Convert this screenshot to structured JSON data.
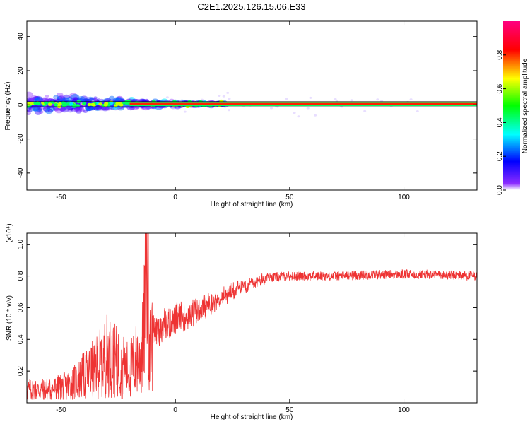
{
  "title": "C2E1.2025.126.15.06.E33",
  "chart_data": [
    {
      "type": "heatmap",
      "name": "spectrogram",
      "xlabel": "Height of straight line (km)",
      "ylabel": "Frequency (Hz)",
      "xlim": [
        -65,
        132
      ],
      "ylim": [
        -50,
        49
      ],
      "xticks": [
        -50,
        0,
        50,
        100
      ],
      "yticks": [
        -40,
        -20,
        0,
        20,
        40
      ],
      "colorbar": {
        "label": "Normalized spectral amplitude",
        "range": [
          0.0,
          1.0
        ],
        "ticks": [
          "0.0",
          "0.2",
          "0.4",
          "0.6",
          "0.8"
        ],
        "colormap": [
          "#7a00ff",
          "#0000ff",
          "#00ffff",
          "#00ff00",
          "#ffff00",
          "#ff0000",
          "#ff0080"
        ]
      },
      "main_line": {
        "frequency_hz": 0.5,
        "x_start": -20,
        "x_end": 132,
        "amplitude": 0.95
      },
      "upper_line_hz": 1.8,
      "lower_line_hz": -1.2,
      "scatter_region": {
        "x_start": -65,
        "x_end": 22,
        "f_min": -12,
        "f_max": 8
      }
    },
    {
      "type": "line",
      "name": "snr",
      "xlabel": "Height of straight line (km)",
      "ylabel": "SNR (10 * v/v)",
      "scale_label": "(x10⁴)",
      "scale_exponent": "4",
      "xlim": [
        -65,
        132
      ],
      "ylim": [
        0.0,
        1.07
      ],
      "xticks": [
        -50,
        0,
        50,
        100
      ],
      "yticks": [
        0.2,
        0.4,
        0.6,
        0.8,
        1.0
      ],
      "color": "#ee3333",
      "series": [
        {
          "name": "SNR",
          "x": [
            -65,
            -55,
            -45,
            -35,
            -30,
            -20,
            -14,
            -12,
            -11,
            -10,
            0,
            10,
            15,
            20,
            30,
            40,
            50,
            70,
            90,
            110,
            132
          ],
          "y": [
            0.08,
            0.08,
            0.12,
            0.22,
            0.3,
            0.2,
            0.35,
            1.07,
            0.3,
            0.45,
            0.52,
            0.58,
            0.62,
            0.66,
            0.74,
            0.79,
            0.8,
            0.8,
            0.81,
            0.81,
            0.8
          ]
        }
      ]
    }
  ]
}
